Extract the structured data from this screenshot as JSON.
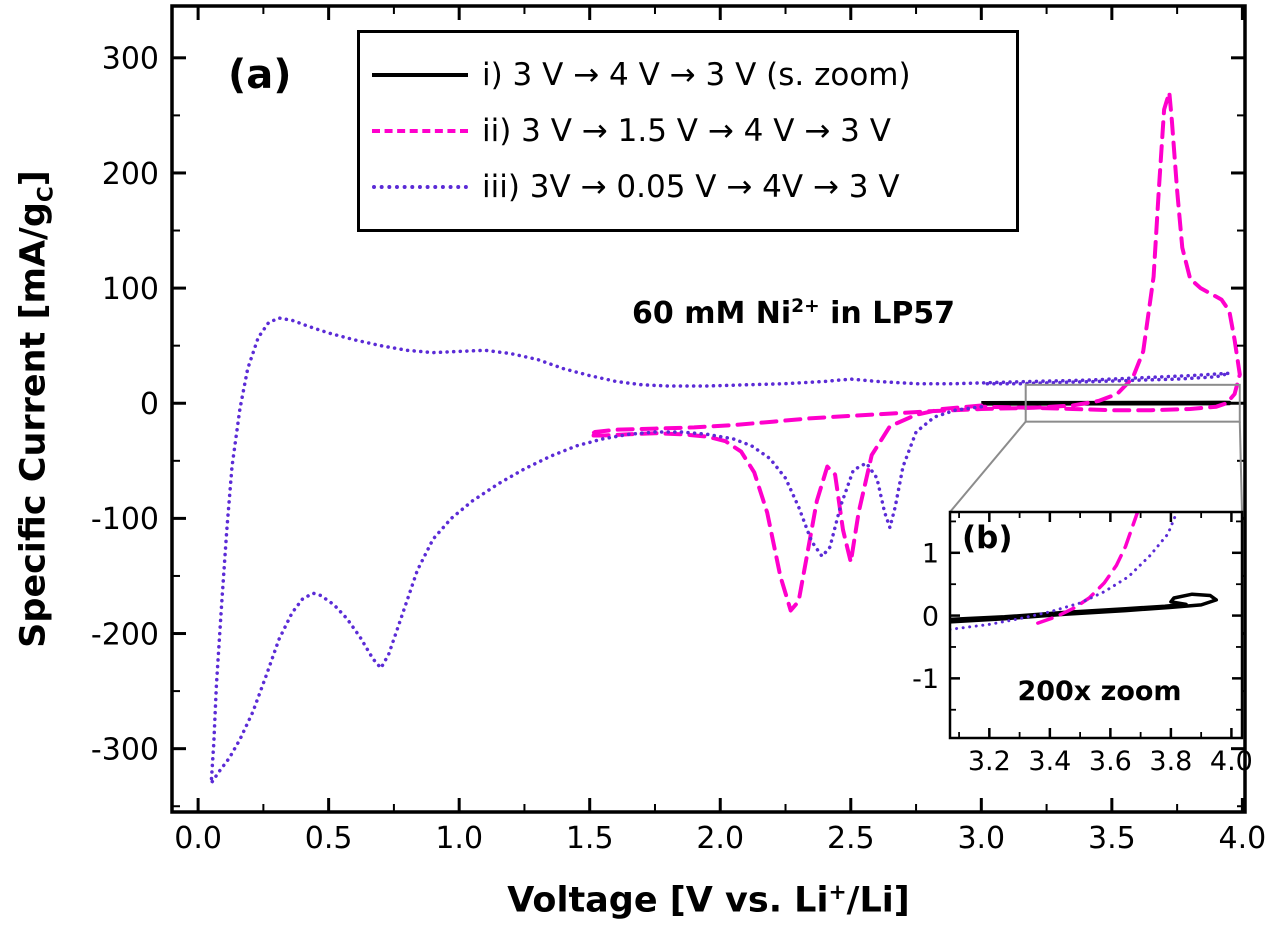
{
  "figure": {
    "panel_a": "(a)",
    "panel_b": "(b)",
    "annotation": {
      "prefix": "60 mM Ni",
      "sup": "2+",
      "suffix": " in LP57"
    },
    "x_axis": {
      "label_prefix": "Voltage [V vs. Li",
      "label_sup": "+",
      "label_suffix": "/Li]"
    },
    "y_axis": {
      "label_prefix": "Specific Current [mA/g",
      "label_sub": "C",
      "label_suffix": "]"
    },
    "inset_caption": "200x zoom",
    "legend": {
      "items": [
        {
          "label": "i) 3 V → 4 V → 3 V (s. zoom)",
          "color": "#000000",
          "style": "solid"
        },
        {
          "label": "ii) 3 V → 1.5 V → 4 V → 3 V",
          "color": "#ff00cc",
          "style": "dashed"
        },
        {
          "label": "iii) 3V → 0.05 V → 4V → 3 V",
          "color": "#5b2bd6",
          "style": "dotted"
        }
      ]
    }
  },
  "chart_data": [
    {
      "id": "main",
      "type": "line",
      "title": "",
      "annotation": "60 mM Ni²⁺ in LP57",
      "xlabel": "Voltage [V vs. Li⁺/Li]",
      "ylabel": "Specific Current [mA/g_C]",
      "xlim": [
        -0.1,
        4.01
      ],
      "ylim": [
        -355,
        345
      ],
      "xticks": [
        0.0,
        0.5,
        1.0,
        1.5,
        2.0,
        2.5,
        3.0,
        3.5,
        4.0
      ],
      "xtick_labels": [
        "0.0",
        "0.5",
        "1.0",
        "1.5",
        "2.0",
        "2.5",
        "3.0",
        "3.5",
        "4.0"
      ],
      "xminor_step": 0.25,
      "yticks": [
        -300,
        -200,
        -100,
        0,
        100,
        200,
        300
      ],
      "ytick_labels": [
        "-300",
        "-200",
        "-100",
        "0",
        "100",
        "200",
        "300"
      ],
      "yminor_step": 50,
      "grid": false,
      "legend_position": "top-center",
      "zoom_region": {
        "x0": 3.17,
        "x1": 3.99,
        "y0": -16,
        "y1": 16
      },
      "series": [
        {
          "key": "i",
          "name": "i) 3 V → 4 V → 3 V (s. zoom)",
          "color": "#000000",
          "style": "solid",
          "width": 4.5,
          "points": [
            [
              3.0,
              0
            ],
            [
              3.2,
              0.1
            ],
            [
              3.4,
              0.1
            ],
            [
              3.6,
              0.2
            ],
            [
              3.8,
              0.25
            ],
            [
              3.93,
              0.3
            ],
            [
              3.95,
              0.2
            ],
            [
              3.9,
              0.1
            ],
            [
              3.7,
              0
            ],
            [
              3.5,
              -0.05
            ],
            [
              3.3,
              -0.1
            ],
            [
              3.0,
              -0.1
            ]
          ]
        },
        {
          "key": "ii",
          "name": "ii) 3 V → 1.5 V → 4 V → 3 V",
          "color": "#ff00cc",
          "style": "dashed",
          "width": 4,
          "points": [
            [
              3.0,
              -2
            ],
            [
              2.85,
              -5
            ],
            [
              2.75,
              -10
            ],
            [
              2.65,
              -20
            ],
            [
              2.58,
              -45
            ],
            [
              2.53,
              -95
            ],
            [
              2.5,
              -138
            ],
            [
              2.47,
              -110
            ],
            [
              2.44,
              -62
            ],
            [
              2.41,
              -55
            ],
            [
              2.37,
              -85
            ],
            [
              2.33,
              -135
            ],
            [
              2.3,
              -172
            ],
            [
              2.27,
              -180
            ],
            [
              2.23,
              -150
            ],
            [
              2.18,
              -95
            ],
            [
              2.13,
              -60
            ],
            [
              2.08,
              -42
            ],
            [
              2.02,
              -33
            ],
            [
              1.95,
              -29
            ],
            [
              1.85,
              -27
            ],
            [
              1.75,
              -26
            ],
            [
              1.65,
              -27
            ],
            [
              1.55,
              -28
            ],
            [
              1.5,
              -28
            ],
            [
              1.52,
              -25
            ],
            [
              1.6,
              -23
            ],
            [
              1.75,
              -22
            ],
            [
              1.9,
              -21
            ],
            [
              2.05,
              -19
            ],
            [
              2.2,
              -16
            ],
            [
              2.35,
              -13
            ],
            [
              2.5,
              -11
            ],
            [
              2.65,
              -9
            ],
            [
              2.8,
              -7
            ],
            [
              3.0,
              -5
            ],
            [
              3.2,
              -4
            ],
            [
              3.35,
              -2
            ],
            [
              3.45,
              2
            ],
            [
              3.52,
              8
            ],
            [
              3.58,
              22
            ],
            [
              3.62,
              45
            ],
            [
              3.66,
              110
            ],
            [
              3.68,
              185
            ],
            [
              3.7,
              255
            ],
            [
              3.72,
              270
            ],
            [
              3.73,
              245
            ],
            [
              3.75,
              185
            ],
            [
              3.77,
              135
            ],
            [
              3.8,
              108
            ],
            [
              3.84,
              100
            ],
            [
              3.88,
              95
            ],
            [
              3.92,
              90
            ],
            [
              3.95,
              80
            ],
            [
              3.97,
              55
            ],
            [
              3.99,
              25
            ],
            [
              3.97,
              8
            ],
            [
              3.94,
              0
            ],
            [
              3.9,
              -3
            ],
            [
              3.8,
              -5
            ],
            [
              3.65,
              -6
            ],
            [
              3.5,
              -6
            ],
            [
              3.35,
              -5
            ],
            [
              3.2,
              -4
            ],
            [
              3.0,
              -3
            ]
          ]
        },
        {
          "key": "iii",
          "name": "iii) 3V → 0.05 V → 4V → 3 V",
          "color": "#5b2bd6",
          "style": "dotted",
          "width": 3.5,
          "points": [
            [
              3.0,
              -3
            ],
            [
              2.9,
              -6
            ],
            [
              2.82,
              -12
            ],
            [
              2.75,
              -25
            ],
            [
              2.7,
              -55
            ],
            [
              2.67,
              -90
            ],
            [
              2.65,
              -108
            ],
            [
              2.63,
              -95
            ],
            [
              2.6,
              -65
            ],
            [
              2.56,
              -52
            ],
            [
              2.51,
              -58
            ],
            [
              2.46,
              -90
            ],
            [
              2.42,
              -125
            ],
            [
              2.39,
              -133
            ],
            [
              2.35,
              -120
            ],
            [
              2.3,
              -90
            ],
            [
              2.25,
              -65
            ],
            [
              2.19,
              -48
            ],
            [
              2.12,
              -37
            ],
            [
              2.05,
              -31
            ],
            [
              1.95,
              -27
            ],
            [
              1.85,
              -25
            ],
            [
              1.75,
              -25
            ],
            [
              1.65,
              -27
            ],
            [
              1.55,
              -31
            ],
            [
              1.45,
              -37
            ],
            [
              1.35,
              -46
            ],
            [
              1.25,
              -57
            ],
            [
              1.15,
              -70
            ],
            [
              1.05,
              -85
            ],
            [
              0.97,
              -100
            ],
            [
              0.9,
              -118
            ],
            [
              0.84,
              -145
            ],
            [
              0.78,
              -185
            ],
            [
              0.73,
              -218
            ],
            [
              0.7,
              -230
            ],
            [
              0.67,
              -222
            ],
            [
              0.62,
              -203
            ],
            [
              0.57,
              -187
            ],
            [
              0.52,
              -175
            ],
            [
              0.47,
              -167
            ],
            [
              0.44,
              -165
            ],
            [
              0.4,
              -170
            ],
            [
              0.36,
              -182
            ],
            [
              0.31,
              -205
            ],
            [
              0.26,
              -237
            ],
            [
              0.21,
              -268
            ],
            [
              0.16,
              -292
            ],
            [
              0.12,
              -308
            ],
            [
              0.08,
              -320
            ],
            [
              0.05,
              -330
            ],
            [
              0.06,
              -295
            ],
            [
              0.07,
              -245
            ],
            [
              0.09,
              -175
            ],
            [
              0.11,
              -110
            ],
            [
              0.13,
              -55
            ],
            [
              0.16,
              -5
            ],
            [
              0.19,
              30
            ],
            [
              0.23,
              57
            ],
            [
              0.27,
              70
            ],
            [
              0.31,
              74
            ],
            [
              0.36,
              72
            ],
            [
              0.42,
              67
            ],
            [
              0.5,
              61
            ],
            [
              0.6,
              55
            ],
            [
              0.7,
              50
            ],
            [
              0.8,
              46
            ],
            [
              0.9,
              44
            ],
            [
              1.0,
              45
            ],
            [
              1.1,
              46
            ],
            [
              1.2,
              43
            ],
            [
              1.3,
              38
            ],
            [
              1.4,
              30
            ],
            [
              1.5,
              24
            ],
            [
              1.6,
              19
            ],
            [
              1.7,
              16
            ],
            [
              1.8,
              15
            ],
            [
              1.95,
              15
            ],
            [
              2.1,
              16
            ],
            [
              2.25,
              17
            ],
            [
              2.4,
              19
            ],
            [
              2.5,
              21
            ],
            [
              2.6,
              19
            ],
            [
              2.75,
              17
            ],
            [
              2.9,
              17
            ],
            [
              3.05,
              18
            ],
            [
              3.2,
              19
            ],
            [
              3.4,
              20
            ],
            [
              3.6,
              22
            ],
            [
              3.8,
              24
            ],
            [
              3.95,
              26
            ],
            [
              3.9,
              23
            ],
            [
              3.75,
              21
            ],
            [
              3.6,
              20
            ],
            [
              3.45,
              19
            ],
            [
              3.3,
              18
            ],
            [
              3.15,
              17
            ],
            [
              3.0,
              17
            ]
          ]
        }
      ]
    },
    {
      "id": "inset",
      "type": "line",
      "title": "200x zoom",
      "xlim": [
        3.07,
        4.035
      ],
      "ylim": [
        -1.95,
        1.65
      ],
      "xticks": [
        3.2,
        3.4,
        3.6,
        3.8,
        4.0
      ],
      "xtick_labels": [
        "3.2",
        "3.4",
        "3.6",
        "3.8",
        "4.0"
      ],
      "xminor_step": 0.1,
      "yticks": [
        -1,
        0,
        1
      ],
      "ytick_labels": [
        "-1",
        "0",
        "1"
      ],
      "yminor_step": 0.5,
      "grid": false,
      "series": [
        {
          "key": "i",
          "name": "i) 3 V → 4 V → 3 V",
          "color": "#000000",
          "style": "solid",
          "width": 3.5,
          "points": [
            [
              3.07,
              -0.1
            ],
            [
              3.25,
              -0.05
            ],
            [
              3.45,
              0.02
            ],
            [
              3.65,
              0.08
            ],
            [
              3.8,
              0.13
            ],
            [
              3.9,
              0.17
            ],
            [
              3.95,
              0.25
            ],
            [
              3.93,
              0.32
            ],
            [
              3.87,
              0.34
            ],
            [
              3.81,
              0.28
            ],
            [
              3.8,
              0.22
            ],
            [
              3.85,
              0.18
            ],
            [
              3.78,
              0.15
            ],
            [
              3.65,
              0.11
            ],
            [
              3.45,
              0.05
            ],
            [
              3.25,
              -0.02
            ],
            [
              3.07,
              -0.06
            ]
          ]
        },
        {
          "key": "ii",
          "name": "ii) 3 V → 1.5 V → 4 V → 3 V",
          "color": "#ff00cc",
          "style": "dashed",
          "width": 3.5,
          "points": [
            [
              3.36,
              -0.12
            ],
            [
              3.42,
              -0.02
            ],
            [
              3.48,
              0.12
            ],
            [
              3.53,
              0.28
            ],
            [
              3.58,
              0.52
            ],
            [
              3.62,
              0.8
            ],
            [
              3.65,
              1.1
            ],
            [
              3.69,
              1.65
            ]
          ]
        },
        {
          "key": "iii",
          "name": "iii) 3V → 0.05 V → 4V → 3 V",
          "color": "#5b2bd6",
          "style": "dotted",
          "width": 3,
          "points": [
            [
              3.07,
              -0.22
            ],
            [
              3.2,
              -0.14
            ],
            [
              3.3,
              -0.05
            ],
            [
              3.4,
              0.06
            ],
            [
              3.5,
              0.2
            ],
            [
              3.58,
              0.38
            ],
            [
              3.66,
              0.62
            ],
            [
              3.73,
              0.95
            ],
            [
              3.79,
              1.3
            ],
            [
              3.82,
              1.65
            ]
          ]
        }
      ]
    }
  ]
}
